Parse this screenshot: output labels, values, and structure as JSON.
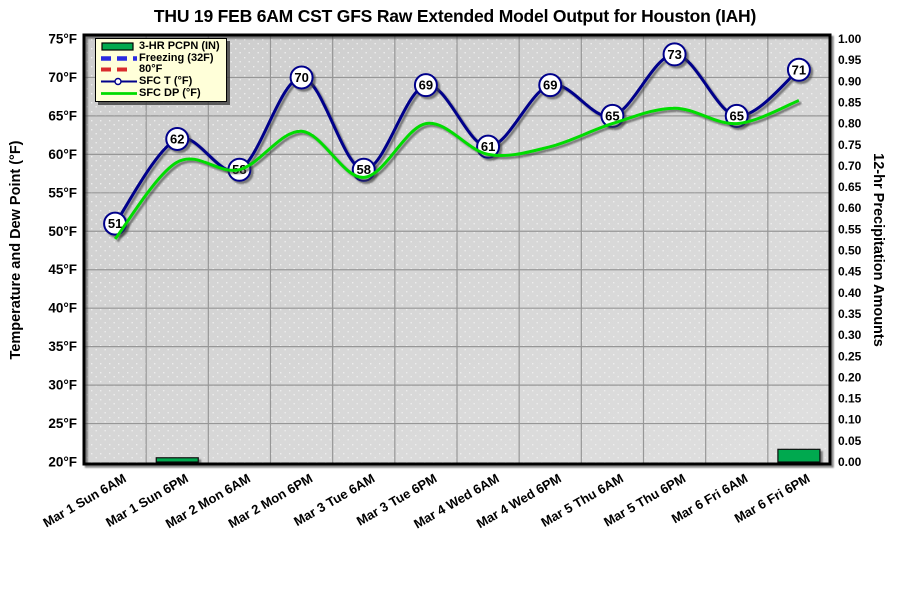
{
  "title": "THU 19 FEB 6AM CST GFS Raw Extended Model Output for Houston (IAH)",
  "chart_data": {
    "type": "line",
    "categories": [
      "Mar 1 Sun 6AM",
      "Mar 1 Sun 6PM",
      "Mar 2 Mon 6AM",
      "Mar 2 Mon 6PM",
      "Mar 3 Tue 6AM",
      "Mar 3 Tue 6PM",
      "Mar 4 Wed 6AM",
      "Mar 4 Wed 6PM",
      "Mar 5 Thu 6AM",
      "Mar 5 Thu 6PM",
      "Mar 6 Fri 6AM",
      "Mar 6 Fri 6PM"
    ],
    "y_left": {
      "label": "Temperature and Dew Point (°F)",
      "min": 20,
      "max": 75,
      "step": 5,
      "ticks": [
        "75°F",
        "70°F",
        "65°F",
        "60°F",
        "55°F",
        "50°F",
        "45°F",
        "40°F",
        "35°F",
        "30°F",
        "25°F",
        "20°F"
      ]
    },
    "y_right": {
      "label": "12-hr Precipitation Amounts",
      "min": 0.0,
      "max": 1.0,
      "step": 0.05,
      "ticks": [
        "1.00",
        "0.95",
        "0.90",
        "0.85",
        "0.80",
        "0.75",
        "0.70",
        "0.65",
        "0.60",
        "0.55",
        "0.50",
        "0.45",
        "0.40",
        "0.35",
        "0.30",
        "0.25",
        "0.20",
        "0.15",
        "0.10",
        "0.05",
        "0.00"
      ]
    },
    "grid": true,
    "plot_background": "#D5D5D5",
    "gridline_color": "#979797",
    "series": [
      {
        "name": "SFC T (°F)",
        "type": "line",
        "smooth": true,
        "color": "#00008B",
        "marker": "labeled-circle",
        "values": [
          51,
          62,
          58,
          70,
          58,
          69,
          61,
          69,
          65,
          73,
          65,
          71
        ]
      },
      {
        "name": "SFC DP (°F)",
        "type": "line",
        "smooth": true,
        "color": "#00DC00",
        "values": [
          49,
          59,
          58,
          63,
          57,
          64,
          60,
          61,
          64,
          66,
          64,
          67
        ]
      },
      {
        "name": "3-HR PCPN (IN)",
        "type": "bar",
        "axis": "right",
        "color": "#00A94F",
        "values": [
          0,
          0.01,
          0,
          0,
          0,
          0,
          0,
          0,
          0,
          0,
          0,
          0.03
        ]
      },
      {
        "name": "Freezing (32F)",
        "type": "reference-line",
        "style": "dashed",
        "color": "#2A2AE0",
        "value": 32
      },
      {
        "name": "80°F",
        "type": "reference-line",
        "style": "dashed",
        "color": "#D92B2B",
        "value": 80
      }
    ],
    "legend": {
      "position": "top-left",
      "items": [
        {
          "label": "3-HR PCPN (IN)",
          "swatch": "bar",
          "color": "#00A94F"
        },
        {
          "label": "Freezing (32F)",
          "swatch": "dash-thick",
          "color": "#2A2AE0"
        },
        {
          "label": "80°F",
          "swatch": "dash",
          "color": "#D92B2B"
        },
        {
          "label": "SFC T (°F)",
          "swatch": "line-marker",
          "color": "#00008B"
        },
        {
          "label": "SFC DP (°F)",
          "swatch": "line",
          "color": "#00DC00"
        }
      ]
    }
  }
}
